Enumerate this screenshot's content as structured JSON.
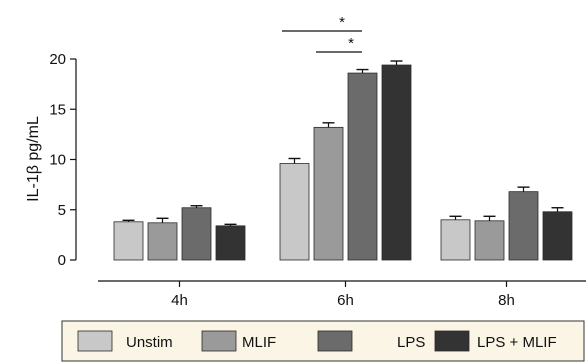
{
  "chart_data": {
    "type": "bar",
    "title": "",
    "xlabel": "",
    "ylabel": "IL-1β pg/mL",
    "ylim": [
      0,
      20
    ],
    "yticks": [
      0,
      5,
      10,
      15,
      20
    ],
    "categories": [
      "4h",
      "6h",
      "8h"
    ],
    "series": [
      {
        "name": "Unstim",
        "color": "#c8c8c8",
        "values": [
          3.8,
          9.6,
          4.0
        ],
        "errors": [
          0.15,
          0.5,
          0.35
        ]
      },
      {
        "name": "MLIF",
        "color": "#9a9a9a",
        "values": [
          3.7,
          13.2,
          3.9
        ],
        "errors": [
          0.45,
          0.45,
          0.45
        ]
      },
      {
        "name": "LPS",
        "color": "#6b6b6b",
        "values": [
          5.2,
          18.6,
          6.8
        ],
        "errors": [
          0.2,
          0.35,
          0.45
        ]
      },
      {
        "name": "LPS + MLIF",
        "color": "#333333",
        "values": [
          3.4,
          19.4,
          4.8
        ],
        "errors": [
          0.15,
          0.4,
          0.4
        ]
      }
    ],
    "grid": false,
    "legend": "bottom",
    "annotations": [
      {
        "label": "*",
        "category": "6h",
        "from_series": 0,
        "to_series": 2
      },
      {
        "label": "*",
        "category": "6h",
        "from_series": 1,
        "to_series": 2
      }
    ]
  }
}
